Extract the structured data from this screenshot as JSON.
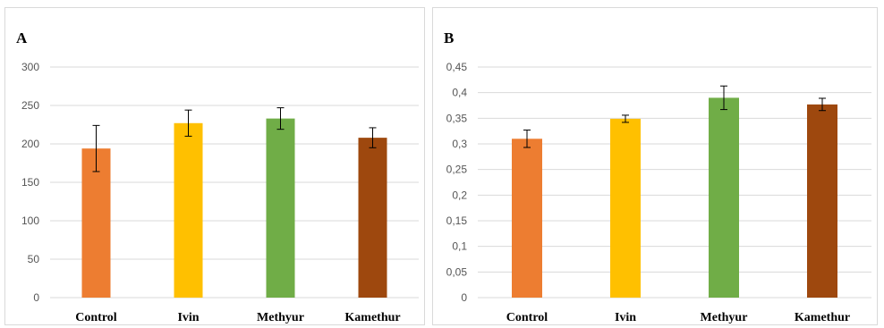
{
  "colors": {
    "control": "#ED7D31",
    "ivin": "#FFC000",
    "methyur": "#70AD47",
    "kamethur": "#9E480E",
    "grid": "#d9d9d9",
    "error_bar": "#000000"
  },
  "chart_data": [
    {
      "type": "bar",
      "panel_label": "A",
      "categories": [
        "Control",
        "Ivin",
        "Methyur",
        "Kamethur"
      ],
      "values": [
        194,
        227,
        233,
        208
      ],
      "errors": [
        30,
        17,
        14,
        13
      ],
      "ylim": [
        0,
        300
      ],
      "yticks": [
        0,
        50,
        100,
        150,
        200,
        250,
        300
      ],
      "ytick_labels": [
        "0",
        "50",
        "100",
        "150",
        "200",
        "250",
        "300"
      ],
      "grid": true,
      "legend": "none"
    },
    {
      "type": "bar",
      "panel_label": "B",
      "categories": [
        "Control",
        "Ivin",
        "Methyur",
        "Kamethur"
      ],
      "values": [
        0.31,
        0.349,
        0.39,
        0.377
      ],
      "errors": [
        0.017,
        0.007,
        0.023,
        0.012
      ],
      "ylim": [
        0,
        0.45
      ],
      "yticks": [
        0,
        0.05,
        0.1,
        0.15,
        0.2,
        0.25,
        0.3,
        0.35,
        0.4,
        0.45
      ],
      "ytick_labels": [
        "0",
        "0,05",
        "0,1",
        "0,15",
        "0,2",
        "0,25",
        "0,3",
        "0,35",
        "0,4",
        "0,45"
      ],
      "grid": true,
      "legend": "none"
    }
  ]
}
